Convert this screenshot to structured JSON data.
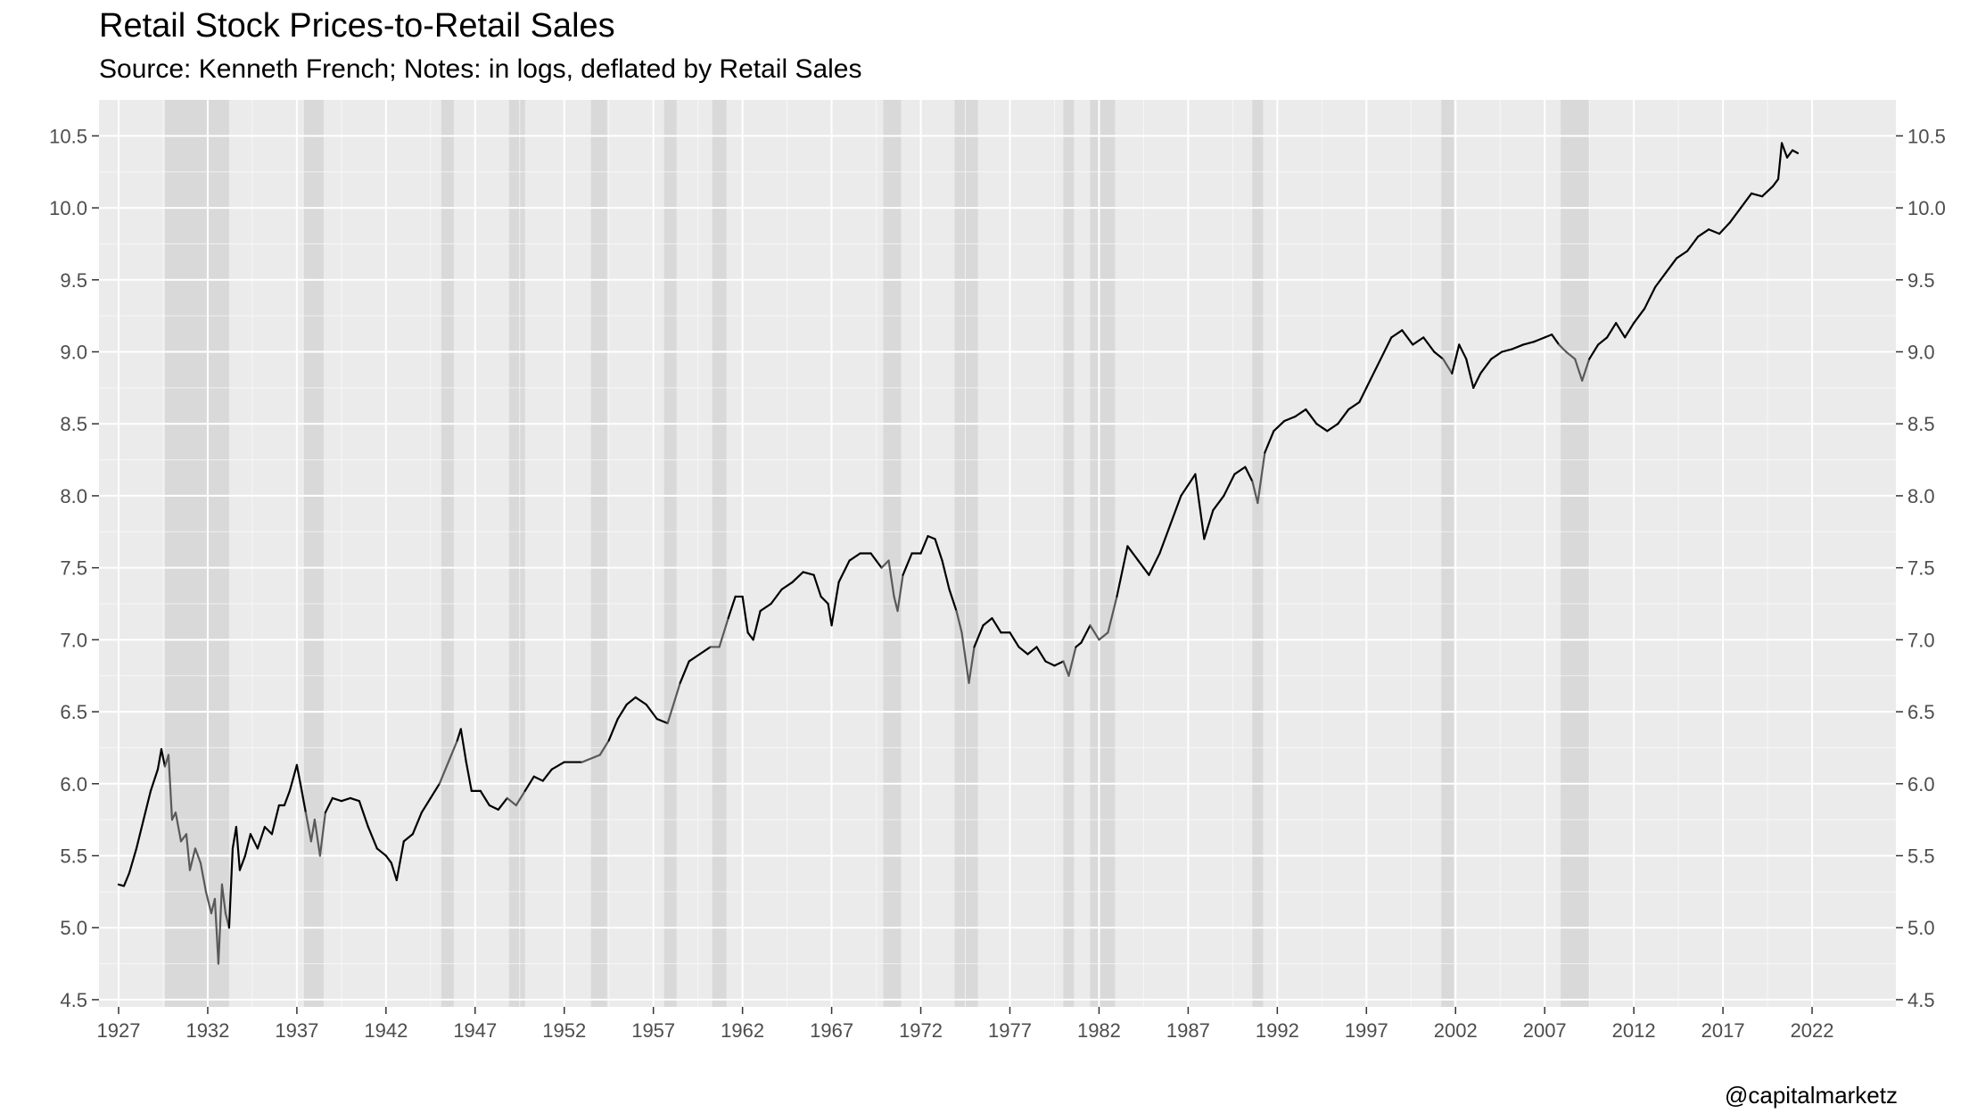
{
  "chart_data": {
    "type": "line",
    "title": "Retail Stock Prices-to-Retail Sales",
    "subtitle": "Source: Kenneth French; Notes: in logs, deflated by Retail Sales",
    "caption": "@capitalmarketz",
    "xlabel": "",
    "ylabel": "",
    "xlim": [
      1925.9,
      2026.7
    ],
    "ylim": [
      4.45,
      10.75
    ],
    "x_ticks": [
      1927,
      1932,
      1937,
      1942,
      1947,
      1952,
      1957,
      1962,
      1967,
      1972,
      1977,
      1982,
      1987,
      1992,
      1997,
      2002,
      2007,
      2012,
      2017,
      2022
    ],
    "y_ticks": [
      4.5,
      5.0,
      5.5,
      6.0,
      6.5,
      7.0,
      7.5,
      8.0,
      8.5,
      9.0,
      9.5,
      10.0,
      10.5
    ],
    "y_tick_labels": [
      "4.5",
      "5.0",
      "5.5",
      "6.0",
      "6.5",
      "7.0",
      "7.5",
      "8.0",
      "8.5",
      "9.0",
      "9.5",
      "10.0",
      "10.5"
    ],
    "grid": true,
    "dual_y_axis": true,
    "recessions": [
      [
        1929.6,
        1933.2
      ],
      [
        1937.4,
        1938.5
      ],
      [
        1945.1,
        1945.8
      ],
      [
        1948.9,
        1949.8
      ],
      [
        1953.5,
        1954.4
      ],
      [
        1957.6,
        1958.3
      ],
      [
        1960.3,
        1961.1
      ],
      [
        1969.9,
        1970.9
      ],
      [
        1973.9,
        1975.2
      ],
      [
        1980.0,
        1980.6
      ],
      [
        1981.5,
        1982.9
      ],
      [
        1990.6,
        1991.2
      ],
      [
        2001.2,
        2001.9
      ],
      [
        2007.9,
        2009.5
      ]
    ],
    "series": [
      {
        "values": [
          [
            1927.0,
            5.3
          ],
          [
            1927.3,
            5.29
          ],
          [
            1927.6,
            5.38
          ],
          [
            1928.0,
            5.55
          ],
          [
            1928.4,
            5.75
          ],
          [
            1928.8,
            5.95
          ],
          [
            1929.2,
            6.1
          ],
          [
            1929.4,
            6.24
          ],
          [
            1929.6,
            6.12
          ],
          [
            1929.8,
            6.2
          ],
          [
            1930.0,
            5.75
          ],
          [
            1930.2,
            5.8
          ],
          [
            1930.5,
            5.6
          ],
          [
            1930.8,
            5.65
          ],
          [
            1931.0,
            5.4
          ],
          [
            1931.3,
            5.55
          ],
          [
            1931.6,
            5.45
          ],
          [
            1931.9,
            5.25
          ],
          [
            1932.2,
            5.1
          ],
          [
            1932.4,
            5.2
          ],
          [
            1932.6,
            4.75
          ],
          [
            1932.8,
            5.3
          ],
          [
            1933.0,
            5.1
          ],
          [
            1933.2,
            5.0
          ],
          [
            1933.4,
            5.55
          ],
          [
            1933.6,
            5.7
          ],
          [
            1933.8,
            5.4
          ],
          [
            1934.1,
            5.5
          ],
          [
            1934.4,
            5.65
          ],
          [
            1934.8,
            5.55
          ],
          [
            1935.2,
            5.7
          ],
          [
            1935.6,
            5.65
          ],
          [
            1936.0,
            5.85
          ],
          [
            1936.3,
            5.85
          ],
          [
            1936.6,
            5.95
          ],
          [
            1937.0,
            6.13
          ],
          [
            1937.2,
            6.0
          ],
          [
            1937.5,
            5.8
          ],
          [
            1937.8,
            5.6
          ],
          [
            1938.0,
            5.75
          ],
          [
            1938.3,
            5.5
          ],
          [
            1938.6,
            5.8
          ],
          [
            1939.0,
            5.9
          ],
          [
            1939.5,
            5.88
          ],
          [
            1940.0,
            5.9
          ],
          [
            1940.5,
            5.88
          ],
          [
            1941.0,
            5.7
          ],
          [
            1941.5,
            5.55
          ],
          [
            1942.0,
            5.5
          ],
          [
            1942.3,
            5.45
          ],
          [
            1942.6,
            5.33
          ],
          [
            1943.0,
            5.6
          ],
          [
            1943.5,
            5.65
          ],
          [
            1944.0,
            5.8
          ],
          [
            1944.5,
            5.9
          ],
          [
            1945.0,
            6.0
          ],
          [
            1945.5,
            6.15
          ],
          [
            1946.0,
            6.3
          ],
          [
            1946.2,
            6.38
          ],
          [
            1946.5,
            6.15
          ],
          [
            1946.8,
            5.95
          ],
          [
            1947.3,
            5.95
          ],
          [
            1947.8,
            5.85
          ],
          [
            1948.3,
            5.82
          ],
          [
            1948.8,
            5.9
          ],
          [
            1949.3,
            5.85
          ],
          [
            1949.8,
            5.95
          ],
          [
            1950.3,
            6.05
          ],
          [
            1950.8,
            6.02
          ],
          [
            1951.3,
            6.1
          ],
          [
            1952.0,
            6.15
          ],
          [
            1953.0,
            6.15
          ],
          [
            1954.0,
            6.2
          ],
          [
            1954.5,
            6.3
          ],
          [
            1955.0,
            6.45
          ],
          [
            1955.5,
            6.55
          ],
          [
            1956.0,
            6.6
          ],
          [
            1956.6,
            6.55
          ],
          [
            1957.2,
            6.45
          ],
          [
            1957.8,
            6.42
          ],
          [
            1958.5,
            6.7
          ],
          [
            1959.0,
            6.85
          ],
          [
            1959.6,
            6.9
          ],
          [
            1960.2,
            6.95
          ],
          [
            1960.7,
            6.95
          ],
          [
            1961.2,
            7.15
          ],
          [
            1961.6,
            7.3
          ],
          [
            1962.0,
            7.3
          ],
          [
            1962.3,
            7.05
          ],
          [
            1962.6,
            7.0
          ],
          [
            1963.0,
            7.2
          ],
          [
            1963.6,
            7.25
          ],
          [
            1964.2,
            7.35
          ],
          [
            1964.8,
            7.4
          ],
          [
            1965.4,
            7.47
          ],
          [
            1966.0,
            7.45
          ],
          [
            1966.4,
            7.3
          ],
          [
            1966.8,
            7.25
          ],
          [
            1967.0,
            7.1
          ],
          [
            1967.4,
            7.4
          ],
          [
            1968.0,
            7.55
          ],
          [
            1968.6,
            7.6
          ],
          [
            1969.2,
            7.6
          ],
          [
            1969.8,
            7.5
          ],
          [
            1970.2,
            7.55
          ],
          [
            1970.5,
            7.3
          ],
          [
            1970.7,
            7.2
          ],
          [
            1971.0,
            7.45
          ],
          [
            1971.5,
            7.6
          ],
          [
            1972.0,
            7.6
          ],
          [
            1972.4,
            7.72
          ],
          [
            1972.8,
            7.7
          ],
          [
            1973.2,
            7.55
          ],
          [
            1973.6,
            7.35
          ],
          [
            1974.0,
            7.2
          ],
          [
            1974.3,
            7.05
          ],
          [
            1974.7,
            6.7
          ],
          [
            1975.0,
            6.95
          ],
          [
            1975.5,
            7.1
          ],
          [
            1976.0,
            7.15
          ],
          [
            1976.5,
            7.05
          ],
          [
            1977.0,
            7.05
          ],
          [
            1977.5,
            6.95
          ],
          [
            1978.0,
            6.9
          ],
          [
            1978.5,
            6.95
          ],
          [
            1979.0,
            6.85
          ],
          [
            1979.5,
            6.82
          ],
          [
            1980.0,
            6.85
          ],
          [
            1980.3,
            6.75
          ],
          [
            1980.7,
            6.95
          ],
          [
            1981.0,
            6.98
          ],
          [
            1981.5,
            7.1
          ],
          [
            1982.0,
            7.0
          ],
          [
            1982.5,
            7.05
          ],
          [
            1983.0,
            7.3
          ],
          [
            1983.6,
            7.65
          ],
          [
            1984.2,
            7.55
          ],
          [
            1984.8,
            7.45
          ],
          [
            1985.4,
            7.6
          ],
          [
            1986.0,
            7.8
          ],
          [
            1986.6,
            8.0
          ],
          [
            1987.4,
            8.15
          ],
          [
            1987.9,
            7.7
          ],
          [
            1988.4,
            7.9
          ],
          [
            1989.0,
            8.0
          ],
          [
            1989.6,
            8.15
          ],
          [
            1990.2,
            8.2
          ],
          [
            1990.6,
            8.1
          ],
          [
            1990.9,
            7.95
          ],
          [
            1991.3,
            8.3
          ],
          [
            1991.8,
            8.45
          ],
          [
            1992.4,
            8.52
          ],
          [
            1993.0,
            8.55
          ],
          [
            1993.6,
            8.6
          ],
          [
            1994.2,
            8.5
          ],
          [
            1994.8,
            8.45
          ],
          [
            1995.4,
            8.5
          ],
          [
            1996.0,
            8.6
          ],
          [
            1996.6,
            8.65
          ],
          [
            1997.2,
            8.8
          ],
          [
            1997.8,
            8.95
          ],
          [
            1998.4,
            9.1
          ],
          [
            1999.0,
            9.15
          ],
          [
            1999.6,
            9.05
          ],
          [
            2000.2,
            9.1
          ],
          [
            2000.8,
            9.0
          ],
          [
            2001.3,
            8.95
          ],
          [
            2001.8,
            8.85
          ],
          [
            2002.2,
            9.05
          ],
          [
            2002.6,
            8.95
          ],
          [
            2003.0,
            8.75
          ],
          [
            2003.4,
            8.85
          ],
          [
            2004.0,
            8.95
          ],
          [
            2004.6,
            9.0
          ],
          [
            2005.2,
            9.02
          ],
          [
            2005.8,
            9.05
          ],
          [
            2006.4,
            9.07
          ],
          [
            2007.0,
            9.1
          ],
          [
            2007.4,
            9.12
          ],
          [
            2007.8,
            9.05
          ],
          [
            2008.2,
            9.0
          ],
          [
            2008.7,
            8.95
          ],
          [
            2009.1,
            8.8
          ],
          [
            2009.5,
            8.95
          ],
          [
            2010.0,
            9.05
          ],
          [
            2010.5,
            9.1
          ],
          [
            2011.0,
            9.2
          ],
          [
            2011.5,
            9.1
          ],
          [
            2012.0,
            9.2
          ],
          [
            2012.6,
            9.3
          ],
          [
            2013.2,
            9.45
          ],
          [
            2013.8,
            9.55
          ],
          [
            2014.4,
            9.65
          ],
          [
            2015.0,
            9.7
          ],
          [
            2015.6,
            9.8
          ],
          [
            2016.2,
            9.85
          ],
          [
            2016.8,
            9.82
          ],
          [
            2017.4,
            9.9
          ],
          [
            2018.0,
            10.0
          ],
          [
            2018.6,
            10.1
          ],
          [
            2019.2,
            10.08
          ],
          [
            2019.8,
            10.15
          ],
          [
            2020.1,
            10.2
          ],
          [
            2020.3,
            10.45
          ],
          [
            2020.6,
            10.35
          ],
          [
            2020.9,
            10.4
          ],
          [
            2021.2,
            10.38
          ]
        ]
      }
    ],
    "colors": {
      "panel_background": "#ebebeb",
      "grid_major": "#ffffff",
      "recession_band": "#d9d9d9",
      "line": "#000000",
      "line_in_recession": "#595959",
      "tick_text": "#4d4d4d"
    }
  }
}
